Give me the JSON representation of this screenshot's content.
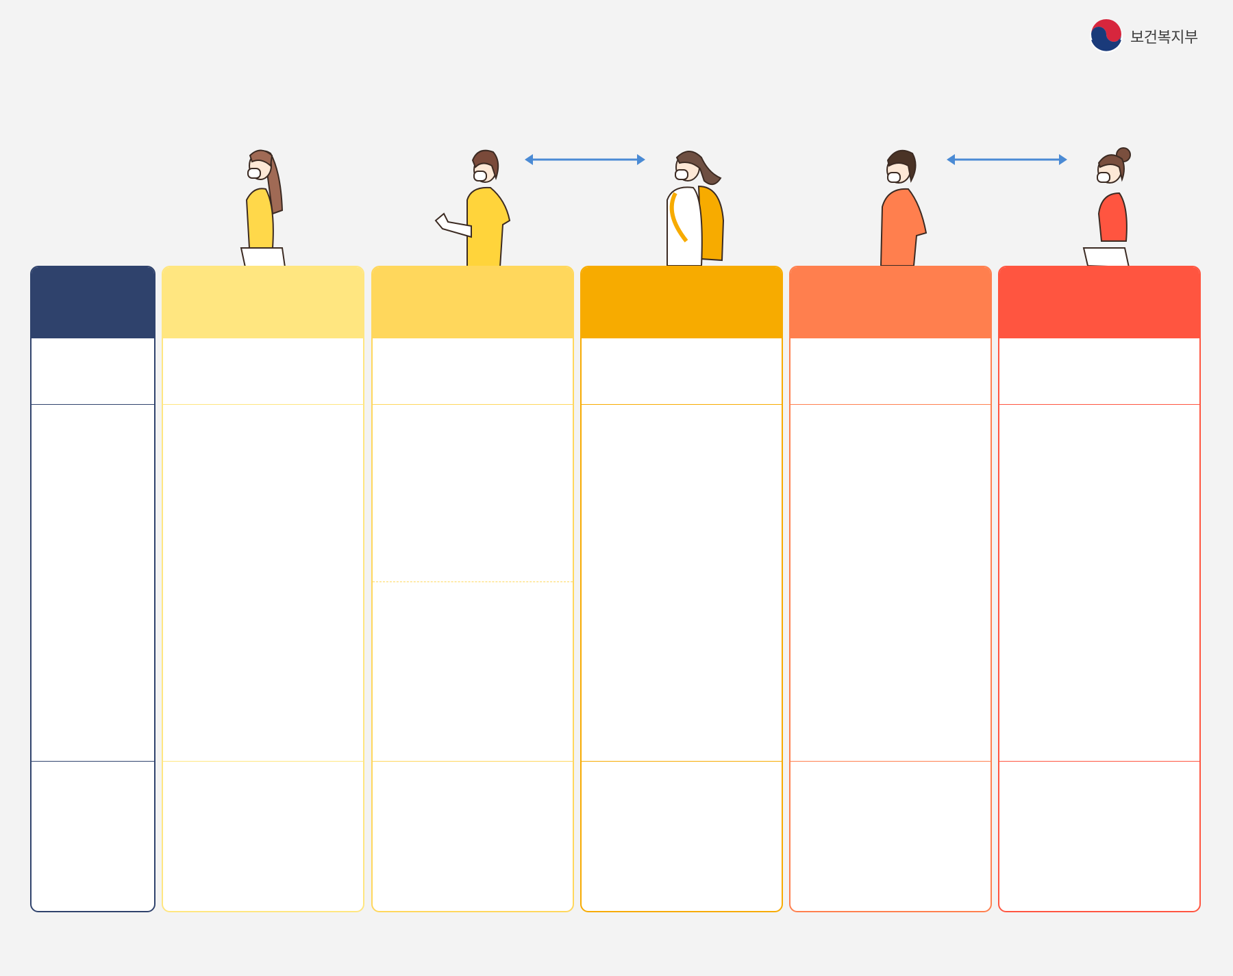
{
  "header": {
    "logo_text": "보건복지부",
    "logo_icon": "taegeuk-emblem-icon"
  },
  "colors": {
    "background": "#f3f3f3",
    "navy": "#2f426c",
    "col1": "#ffe680",
    "col2": "#ffd75c",
    "col3": "#f7ab00",
    "col4": "#ff7f4e",
    "col5": "#ff5540",
    "arrow": "#4a8ad4"
  },
  "illustrations": [
    {
      "name": "person-woman-long-hair-icon"
    },
    {
      "name": "person-man-yellow-shirt-icon"
    },
    {
      "name": "person-student-backpack-icon"
    },
    {
      "name": "person-man-orange-shirt-icon"
    },
    {
      "name": "person-woman-red-top-icon"
    }
  ],
  "arrows": [
    {
      "name": "double-arrow-icon"
    },
    {
      "name": "double-arrow-icon"
    }
  ],
  "table": {
    "columns": [
      {
        "header": "",
        "rows": [
          "",
          "",
          ""
        ]
      },
      {
        "header": "",
        "rows": [
          "",
          "",
          ""
        ]
      },
      {
        "header": "",
        "rows": [
          "",
          "",
          "",
          ""
        ]
      },
      {
        "header": "",
        "rows": [
          "",
          "",
          ""
        ]
      },
      {
        "header": "",
        "rows": [
          "",
          "",
          ""
        ]
      },
      {
        "header": "",
        "rows": [
          "",
          "",
          ""
        ]
      }
    ]
  }
}
